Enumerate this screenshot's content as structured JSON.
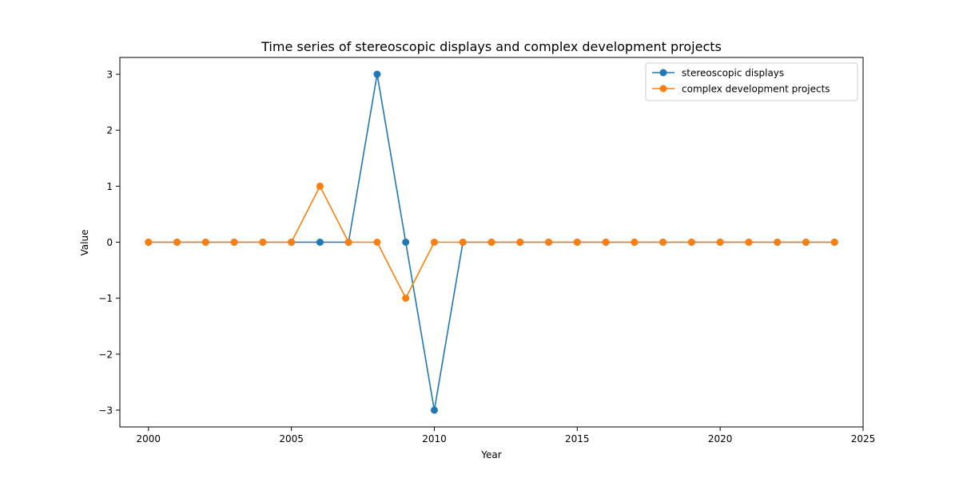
{
  "chart_data": {
    "type": "line",
    "title": "Time series of stereoscopic displays and complex development projects",
    "xlabel": "Year",
    "ylabel": "Value",
    "xlim": [
      1999,
      2025
    ],
    "ylim": [
      -3.3,
      3.3
    ],
    "x_ticks": [
      2000,
      2005,
      2010,
      2015,
      2020,
      2025
    ],
    "y_ticks": [
      -3,
      -2,
      -1,
      0,
      1,
      2,
      3
    ],
    "x_tick_labels": [
      "2000",
      "2005",
      "2010",
      "2015",
      "2020",
      "2025"
    ],
    "y_tick_labels": [
      "−3",
      "−2",
      "−1",
      "0",
      "1",
      "2",
      "3"
    ],
    "grid": false,
    "legend_position": "top-right",
    "x": [
      2000,
      2001,
      2002,
      2003,
      2004,
      2005,
      2006,
      2007,
      2008,
      2009,
      2010,
      2011,
      2012,
      2013,
      2014,
      2015,
      2016,
      2017,
      2018,
      2019,
      2020,
      2021,
      2022,
      2023,
      2024
    ],
    "series": [
      {
        "name": "stereoscopic displays",
        "color": "#1f77b4",
        "values": [
          0,
          0,
          0,
          0,
          0,
          0,
          0,
          0,
          3,
          0,
          -3,
          0,
          0,
          0,
          0,
          0,
          0,
          0,
          0,
          0,
          0,
          0,
          0,
          0,
          0
        ]
      },
      {
        "name": "complex development projects",
        "color": "#ff7f0e",
        "values": [
          0,
          0,
          0,
          0,
          0,
          0,
          1,
          0,
          0,
          -1,
          0,
          0,
          0,
          0,
          0,
          0,
          0,
          0,
          0,
          0,
          0,
          0,
          0,
          0,
          0
        ]
      }
    ]
  }
}
